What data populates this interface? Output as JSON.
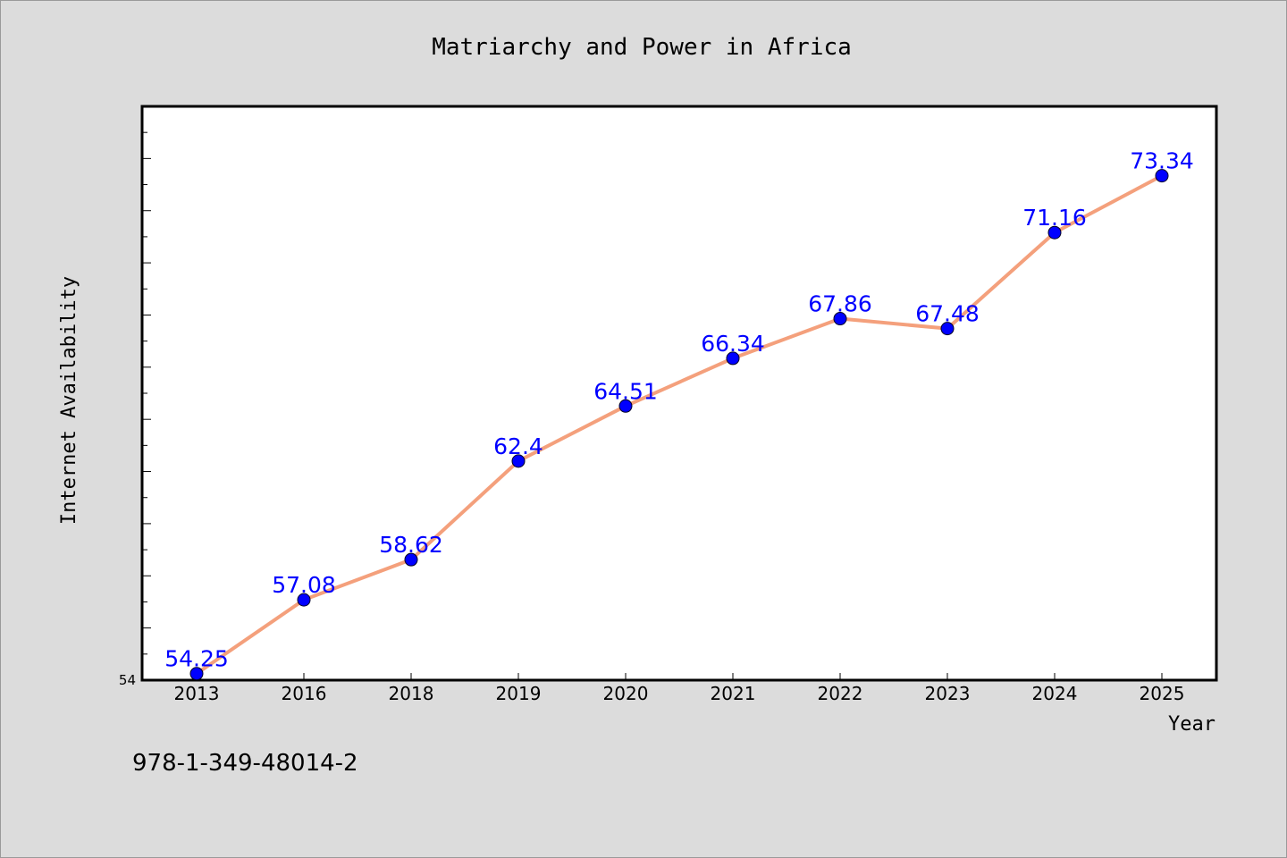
{
  "chart_data": {
    "type": "line",
    "title": "Matriarchy and Power in Africa",
    "xlabel": "Year",
    "ylabel": "Internet Availability",
    "categories": [
      "2013",
      "2016",
      "2018",
      "2019",
      "2020",
      "2021",
      "2022",
      "2023",
      "2024",
      "2025"
    ],
    "series": [
      {
        "values": [
          54.25,
          57.08,
          58.62,
          62.4,
          64.51,
          66.34,
          67.86,
          67.48,
          71.16,
          73.34
        ],
        "labels": [
          "54.25",
          "57.08",
          "58.62",
          "62.4",
          "64.51",
          "66.34",
          "67.86",
          "67.48",
          "71.16",
          "73.34"
        ],
        "line_color": "#f4a07c",
        "marker_color": "#0000ff"
      }
    ],
    "ylim": [
      54,
      76
    ],
    "y_tick_labels": [
      "54"
    ],
    "grid": false,
    "legend": "none"
  },
  "footnote": "978-1-349-48014-2",
  "colors": {
    "background": "#dcdcdc",
    "plot_background": "#ffffff",
    "data_label": "#0000ff"
  }
}
